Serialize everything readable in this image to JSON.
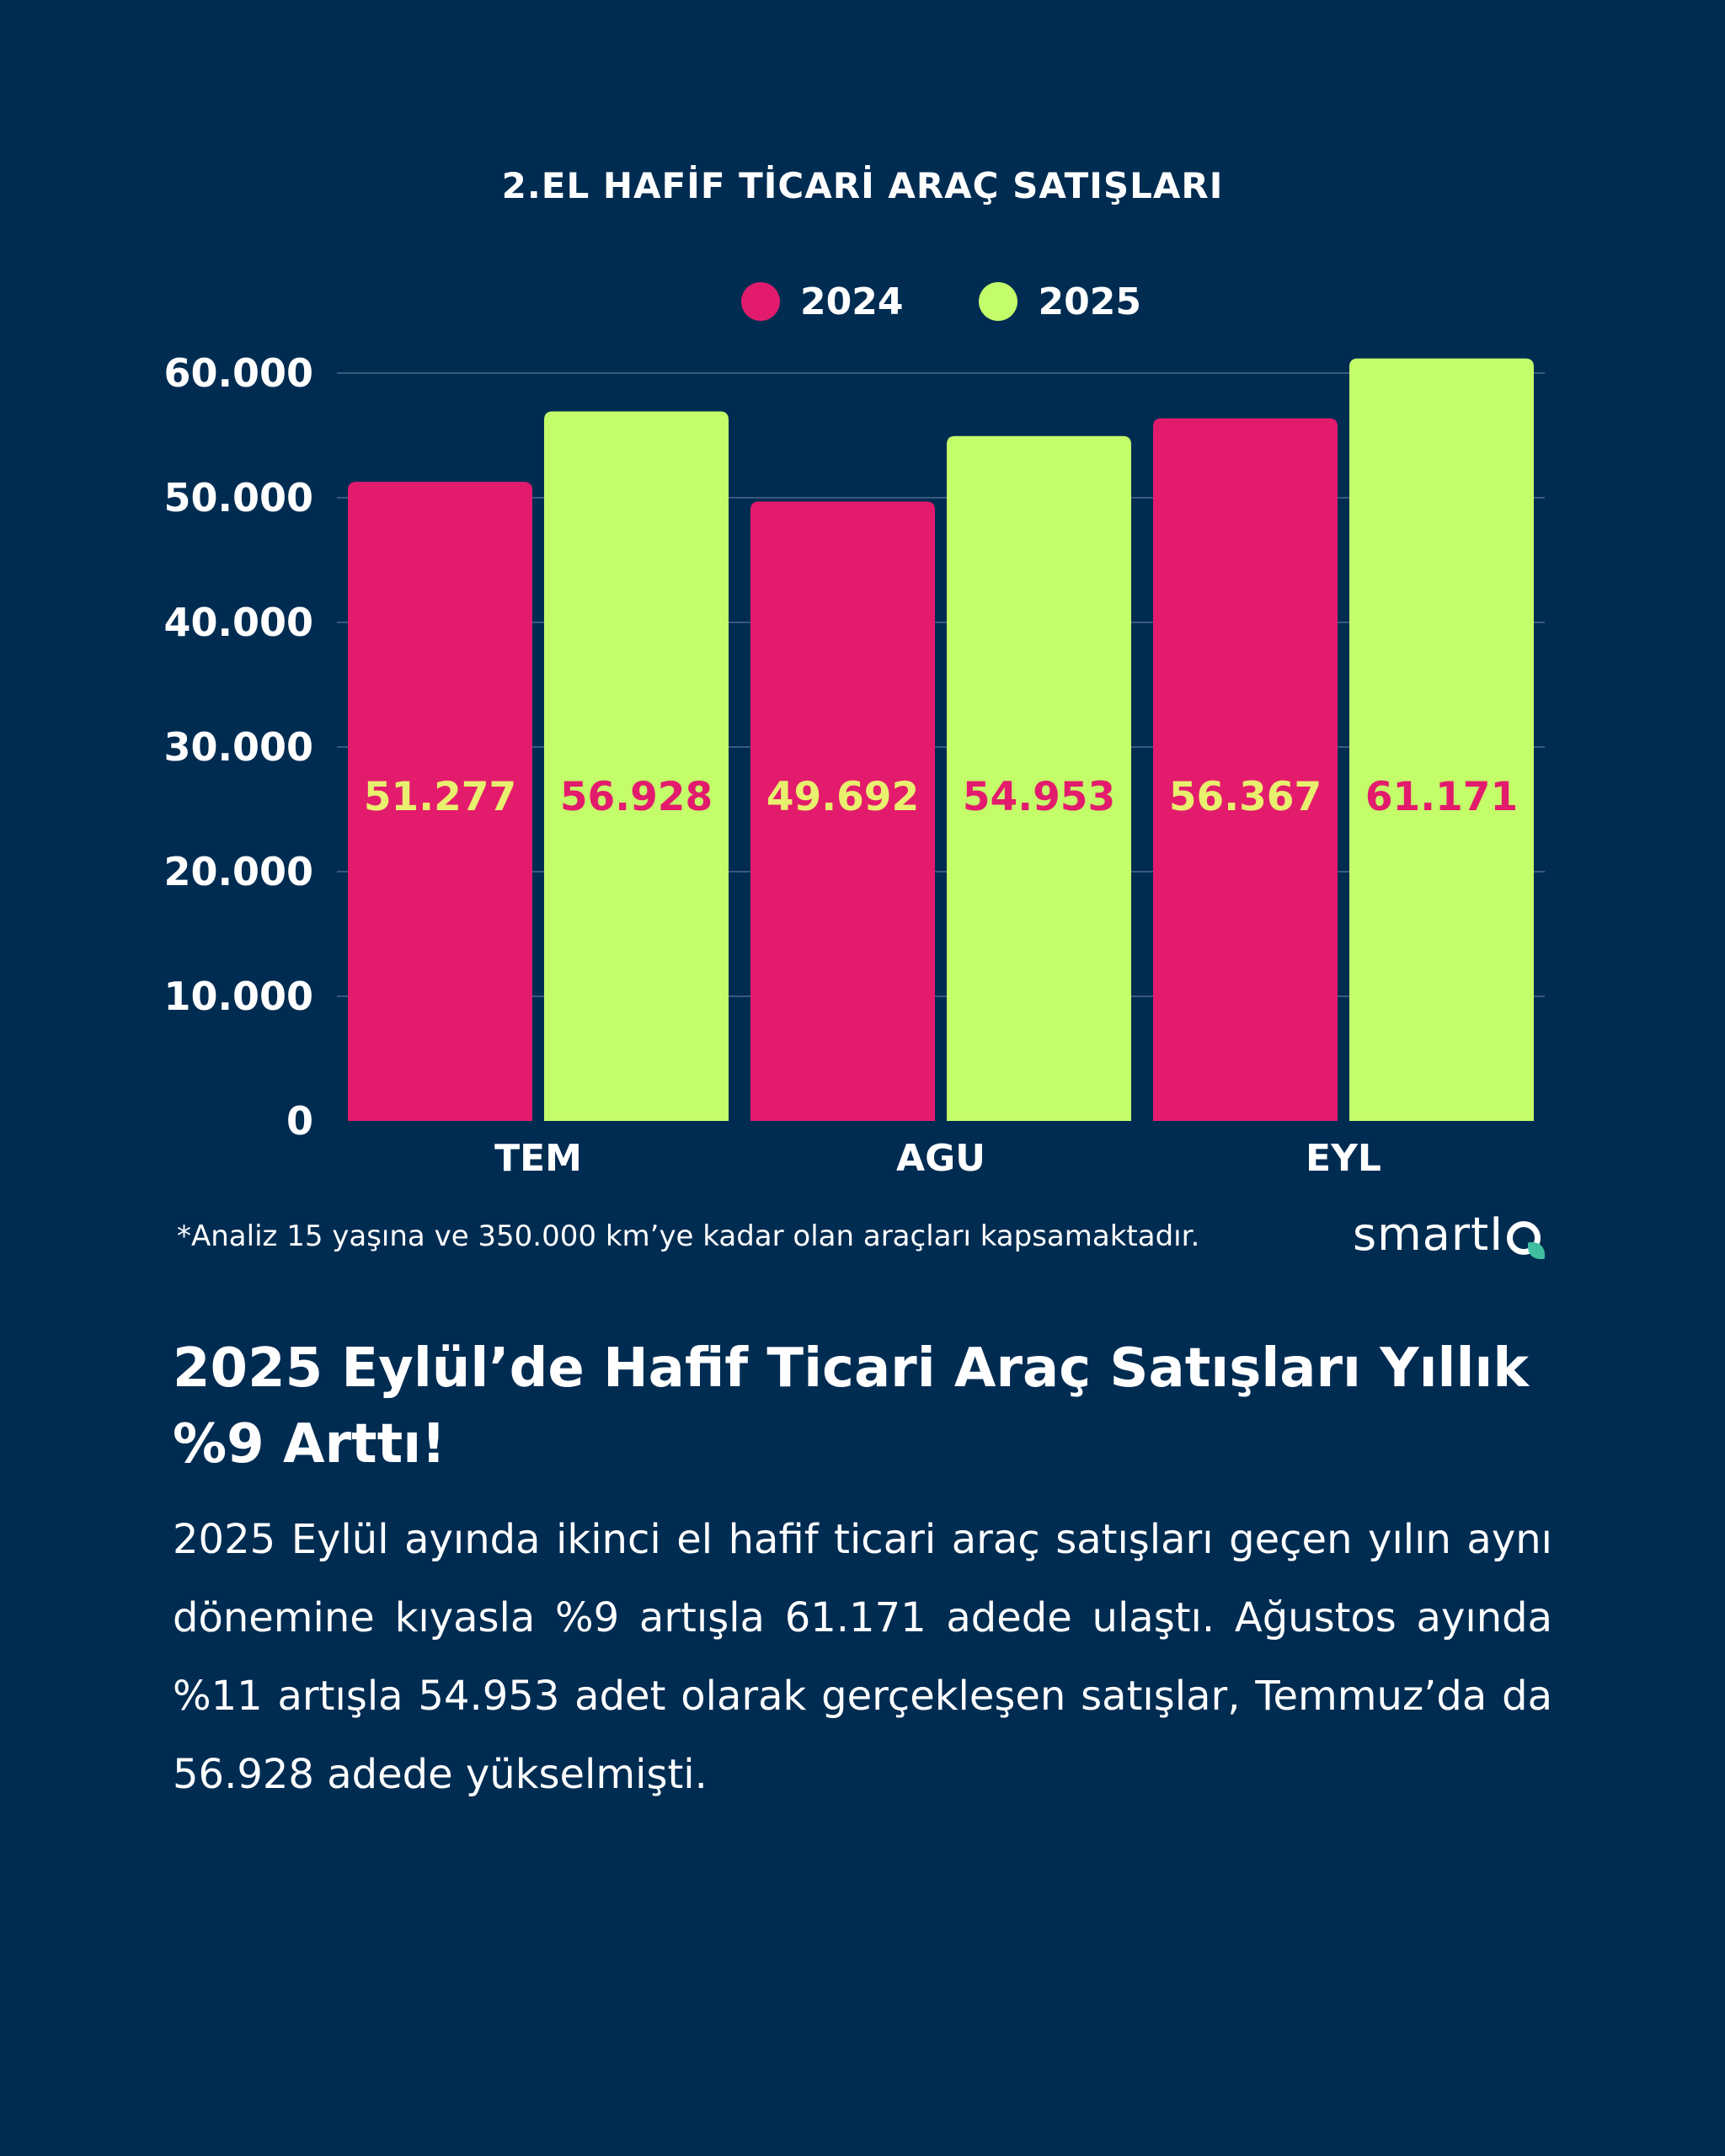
{
  "colors": {
    "background": "#002c52",
    "series_2024": "#e31b6d",
    "series_2025": "#c4fd6a",
    "label_on_2024": "#e8f06e",
    "label_on_2025": "#e31b6d",
    "gridline": "#3a5a7a",
    "text": "#ffffff",
    "brand_accent": "#3fbfa0"
  },
  "chart_data": {
    "type": "bar",
    "title": "2.EL HAFİF TİCARİ ARAÇ SATIŞLARI",
    "categories": [
      "TEM",
      "AGU",
      "EYL"
    ],
    "series": [
      {
        "name": "2024",
        "values": [
          51277,
          49692,
          56367
        ],
        "labels": [
          "51.277",
          "49.692",
          "56.367"
        ]
      },
      {
        "name": "2025",
        "values": [
          56928,
          54953,
          61171
        ],
        "labels": [
          "56.928",
          "54.953",
          "61.171"
        ]
      }
    ],
    "y_ticks": [
      0,
      10000,
      20000,
      30000,
      40000,
      50000,
      60000
    ],
    "y_tick_labels": [
      "0",
      "10.000",
      "20.000",
      "30.000",
      "40.000",
      "50.000",
      "60.000"
    ],
    "ylim": [
      0,
      70000
    ],
    "grid": true,
    "legend_position": "top-center"
  },
  "footnote": "*Analiz 15 yaşına ve 350.000 km’ye kadar olan araçları kapsamaktadır.",
  "brand": {
    "name": "smartI",
    "mark_icon": "q-mark-icon"
  },
  "headline": "2025 Eylül’de Hafif Ticari Araç Satışları Yıllık %9 Arttı!",
  "body": "2025 Eylül ayında ikinci el hafif ticari araç satışları geçen yılın aynı dönemine kıyasla %9 artışla 61.171 adede ulaştı. Ağustos ayında %11 artışla 54.953 adet olarak gerçekleşen satışlar, Temmuz’da da 56.928 adede yükselmişti."
}
